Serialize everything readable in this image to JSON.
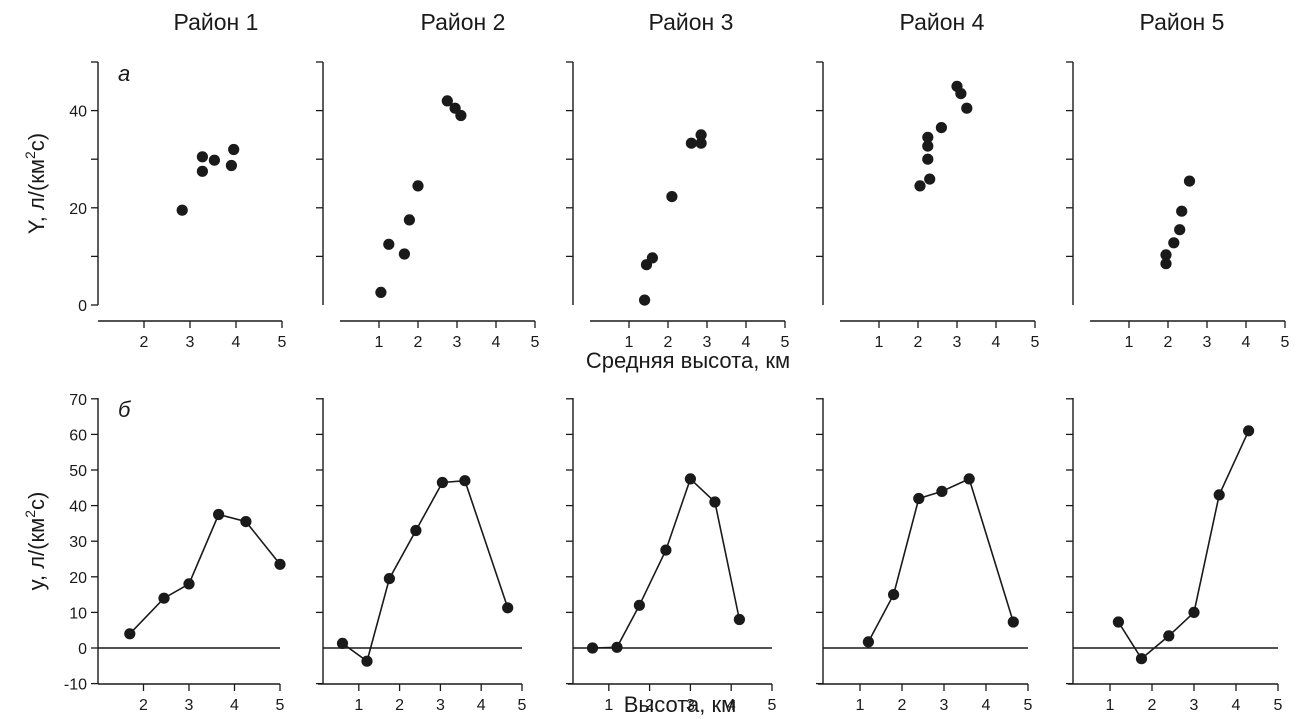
{
  "chart_data": [
    {
      "type": "scatter",
      "row": "а",
      "title": "Район 1",
      "ylabel_main": "Y, л/(км",
      "ylabel_sup": "2",
      "ylabel_tail": "с)",
      "xlim": [
        1,
        5
      ],
      "ylim": [
        0,
        50
      ],
      "xticks": [
        2,
        3,
        4,
        5
      ],
      "yticks": [
        0,
        20,
        40
      ],
      "minor_yticks": [
        10,
        30,
        50
      ],
      "points": [
        [
          2.83,
          19.5
        ],
        [
          3.27,
          30.5
        ],
        [
          3.27,
          27.5
        ],
        [
          3.53,
          29.8
        ],
        [
          3.95,
          32
        ],
        [
          3.9,
          28.7
        ]
      ]
    },
    {
      "type": "scatter",
      "title": "Район 2",
      "xlim": [
        0,
        5
      ],
      "ylim": [
        0,
        50
      ],
      "xticks": [
        1,
        2,
        3,
        4,
        5
      ],
      "yticks": [],
      "minor_yticks": [
        10,
        20,
        30,
        40,
        50
      ],
      "points": [
        [
          1.05,
          2.6
        ],
        [
          1.25,
          12.5
        ],
        [
          1.65,
          10.5
        ],
        [
          1.78,
          17.5
        ],
        [
          2.0,
          24.5
        ],
        [
          2.75,
          42
        ],
        [
          2.95,
          40.5
        ],
        [
          3.1,
          39
        ]
      ]
    },
    {
      "type": "scatter",
      "title": "Район 3",
      "xlim": [
        0,
        5
      ],
      "ylim": [
        0,
        50
      ],
      "xticks": [
        1,
        2,
        3,
        4,
        5
      ],
      "yticks": [],
      "minor_yticks": [
        10,
        20,
        30,
        40,
        50
      ],
      "points": [
        [
          1.4,
          1
        ],
        [
          1.45,
          8.3
        ],
        [
          1.6,
          9.7
        ],
        [
          2.1,
          22.3
        ],
        [
          2.6,
          33.3
        ],
        [
          2.85,
          33.3
        ],
        [
          2.85,
          35
        ]
      ]
    },
    {
      "type": "scatter",
      "title": "Район 4",
      "xlim": [
        0,
        5
      ],
      "ylim": [
        0,
        50
      ],
      "xticks": [
        1,
        2,
        3,
        4,
        5
      ],
      "yticks": [],
      "minor_yticks": [
        10,
        20,
        30,
        40,
        50
      ],
      "points": [
        [
          2.05,
          24.5
        ],
        [
          2.25,
          34.5
        ],
        [
          2.25,
          32.7
        ],
        [
          2.25,
          30
        ],
        [
          2.3,
          25.9
        ],
        [
          2.6,
          36.5
        ],
        [
          3.0,
          45
        ],
        [
          3.1,
          43.5
        ],
        [
          3.25,
          40.5
        ]
      ]
    },
    {
      "type": "scatter",
      "title": "Район 5",
      "xlim": [
        0,
        5
      ],
      "ylim": [
        0,
        50
      ],
      "xticks": [
        1,
        2,
        3,
        4,
        5
      ],
      "yticks": [],
      "minor_yticks": [
        10,
        20,
        30,
        40,
        50
      ],
      "points": [
        [
          1.95,
          8.5
        ],
        [
          1.95,
          10.3
        ],
        [
          2.15,
          12.8
        ],
        [
          2.3,
          15.5
        ],
        [
          2.35,
          19.3
        ],
        [
          2.55,
          25.5
        ]
      ]
    },
    {
      "type": "line",
      "row": "б",
      "ylabel_main": "y, л/(км",
      "ylabel_sup": "2",
      "ylabel_tail": "с)",
      "xlim": [
        1,
        5
      ],
      "ylim": [
        -10,
        70
      ],
      "xticks": [
        2,
        3,
        4,
        5
      ],
      "yticks": [
        -10,
        0,
        10,
        20,
        30,
        40,
        50,
        60,
        70
      ],
      "zero_line": true,
      "points": [
        [
          1.7,
          4
        ],
        [
          2.45,
          14
        ],
        [
          3.0,
          18
        ],
        [
          3.65,
          37.5
        ],
        [
          4.25,
          35.5
        ],
        [
          5.0,
          23.5
        ]
      ]
    },
    {
      "type": "line",
      "xlim": [
        0,
        5
      ],
      "ylim": [
        -10,
        70
      ],
      "xticks": [
        1,
        2,
        3,
        4,
        5
      ],
      "yticks": [],
      "minor_yticks": [
        -10,
        10,
        20,
        30,
        40,
        50,
        60,
        70
      ],
      "zero_line": true,
      "points": [
        [
          0.6,
          1.3
        ],
        [
          1.2,
          -3.7
        ],
        [
          1.75,
          19.5
        ],
        [
          2.4,
          33
        ],
        [
          3.05,
          46.5
        ],
        [
          3.6,
          47
        ],
        [
          4.65,
          11.3
        ]
      ]
    },
    {
      "type": "line",
      "xlim": [
        0,
        5
      ],
      "ylim": [
        -10,
        70
      ],
      "xticks": [
        1,
        2,
        3,
        4,
        5
      ],
      "yticks": [],
      "minor_yticks": [
        -10,
        10,
        20,
        30,
        40,
        50,
        60,
        70
      ],
      "zero_line": true,
      "points": [
        [
          0.6,
          0
        ],
        [
          1.2,
          0.2
        ],
        [
          1.75,
          12
        ],
        [
          2.4,
          27.5
        ],
        [
          3.0,
          47.5
        ],
        [
          3.6,
          41
        ],
        [
          4.2,
          8
        ]
      ]
    },
    {
      "type": "line",
      "xlim": [
        0,
        5
      ],
      "ylim": [
        -10,
        70
      ],
      "xticks": [
        1,
        2,
        3,
        4,
        5
      ],
      "yticks": [],
      "minor_yticks": [
        -10,
        10,
        20,
        30,
        40,
        50,
        60,
        70
      ],
      "zero_line": true,
      "points": [
        [
          1.2,
          1.7
        ],
        [
          1.8,
          15
        ],
        [
          2.4,
          42
        ],
        [
          2.95,
          44
        ],
        [
          3.6,
          47.5
        ],
        [
          4.65,
          7.3
        ]
      ]
    },
    {
      "type": "line",
      "xlim": [
        0,
        5
      ],
      "ylim": [
        -10,
        70
      ],
      "xticks": [
        1,
        2,
        3,
        4,
        5
      ],
      "yticks": [],
      "minor_yticks": [
        -10,
        10,
        20,
        30,
        40,
        50,
        60,
        70
      ],
      "zero_line": true,
      "points": [
        [
          1.2,
          7.3
        ],
        [
          1.75,
          -3
        ],
        [
          2.4,
          3.4
        ],
        [
          3.0,
          10
        ],
        [
          3.6,
          43
        ],
        [
          4.3,
          61
        ]
      ]
    }
  ],
  "xlabel_top": "Средняя высота, км",
  "xlabel_bottom": "Высота, км",
  "colors": {
    "ink": "#1a1a1a",
    "background": "#ffffff"
  }
}
